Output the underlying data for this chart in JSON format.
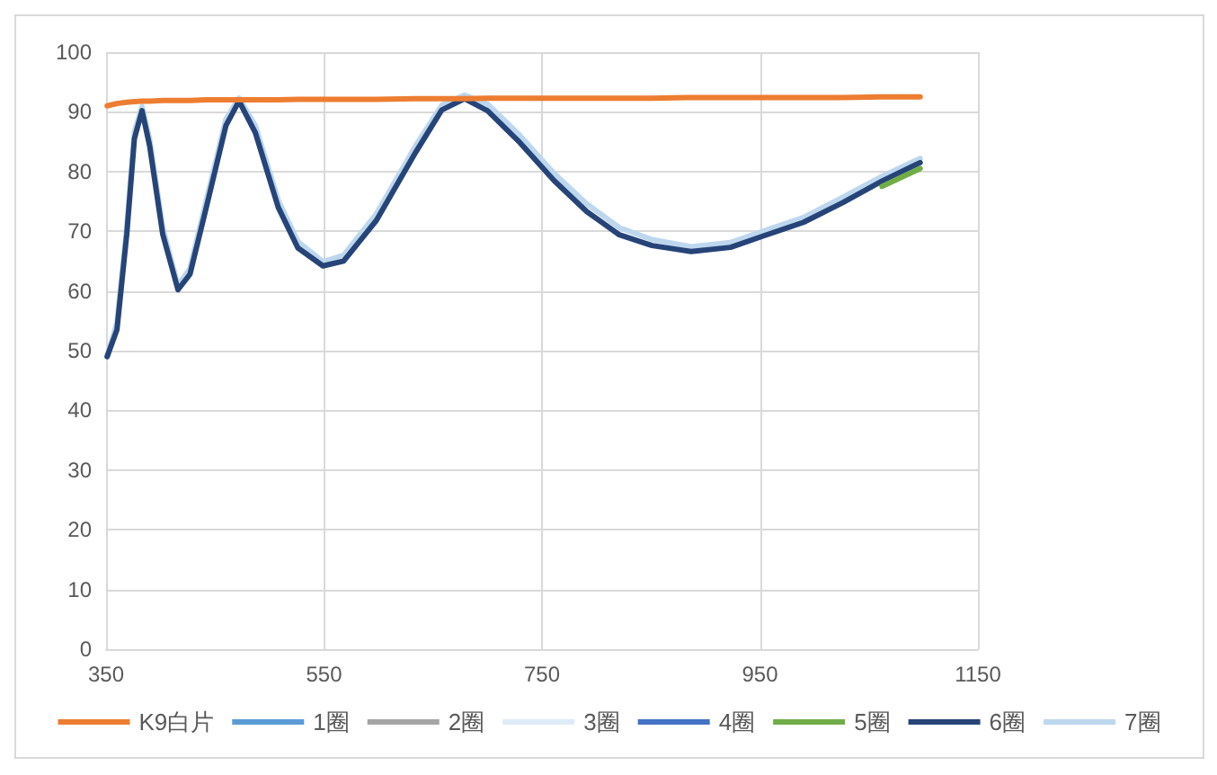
{
  "chart_data": {
    "type": "line",
    "x": [
      351,
      360,
      369,
      376,
      383,
      390,
      402,
      416,
      427,
      442,
      460,
      472,
      487,
      508,
      526,
      549,
      568,
      598,
      634,
      658,
      679,
      700,
      730,
      761,
      791,
      821,
      851,
      887,
      923,
      953,
      990,
      1026,
      1062,
      1097
    ],
    "xlim": [
      350,
      1150
    ],
    "xticks": [
      350,
      550,
      750,
      950,
      1150
    ],
    "ylim": [
      0,
      100
    ],
    "yticks": [
      0,
      10,
      20,
      30,
      40,
      50,
      60,
      70,
      80,
      90,
      100
    ],
    "grid": true,
    "legend": "bottom",
    "marker": "none",
    "series": [
      {
        "name": "K9白片",
        "color": "#ed7d31",
        "values": [
          91,
          91.4,
          91.6,
          91.7,
          91.8,
          91.8,
          91.9,
          91.9,
          91.9,
          92,
          92,
          92,
          92,
          92,
          92.1,
          92.1,
          92.1,
          92.1,
          92.2,
          92.2,
          92.2,
          92.3,
          92.3,
          92.3,
          92.3,
          92.3,
          92.3,
          92.4,
          92.4,
          92.4,
          92.4,
          92.4,
          92.5,
          92.5
        ]
      },
      {
        "name": "1圈",
        "color": "#5b9bd5",
        "values": [
          null,
          null,
          null,
          null,
          null,
          null,
          null,
          null,
          null,
          null,
          null,
          null,
          null,
          null,
          null,
          null,
          null,
          null,
          null,
          null,
          null,
          null,
          null,
          null,
          null,
          null,
          null,
          null,
          null,
          null,
          null,
          null,
          null,
          null
        ]
      },
      {
        "name": "2圈",
        "color": "#a5a5a5",
        "values": [
          null,
          null,
          null,
          null,
          null,
          null,
          null,
          null,
          null,
          null,
          null,
          null,
          null,
          null,
          null,
          null,
          null,
          null,
          null,
          null,
          null,
          null,
          null,
          null,
          null,
          null,
          null,
          null,
          null,
          null,
          null,
          null,
          null,
          null
        ]
      },
      {
        "name": "3圈",
        "color": "#deebf7",
        "values": [
          null,
          null,
          null,
          null,
          null,
          null,
          null,
          null,
          null,
          null,
          null,
          null,
          null,
          null,
          null,
          null,
          null,
          null,
          null,
          null,
          null,
          null,
          null,
          null,
          null,
          null,
          null,
          null,
          null,
          null,
          null,
          null,
          null,
          null
        ]
      },
      {
        "name": "4圈",
        "color": "#4472c4",
        "values": [
          null,
          null,
          null,
          null,
          null,
          null,
          null,
          null,
          null,
          null,
          null,
          null,
          null,
          null,
          null,
          null,
          null,
          null,
          null,
          null,
          null,
          null,
          null,
          null,
          null,
          null,
          null,
          null,
          null,
          null,
          null,
          null,
          null,
          null
        ]
      },
      {
        "name": "5圈",
        "color": "#70ad47",
        "values": [
          null,
          null,
          null,
          null,
          null,
          null,
          null,
          null,
          null,
          null,
          null,
          null,
          null,
          null,
          null,
          null,
          null,
          null,
          null,
          null,
          null,
          null,
          null,
          null,
          null,
          null,
          null,
          null,
          null,
          null,
          null,
          null,
          77.5,
          80.5
        ]
      },
      {
        "name": "6圈",
        "color": "#264478",
        "values": [
          49,
          53.5,
          69.5,
          85.5,
          90.2,
          84.3,
          69.5,
          60.2,
          62.8,
          74,
          87.7,
          91.8,
          86.5,
          74,
          67.2,
          64.2,
          65,
          71.8,
          83.2,
          90.3,
          92.2,
          90.2,
          84.8,
          78.5,
          73.3,
          69.4,
          67.6,
          66.6,
          67.3,
          69.2,
          71.5,
          74.8,
          78.4,
          81.5
        ]
      },
      {
        "name": "7圈",
        "color": "#bdd7ee",
        "values": [
          49,
          54.7,
          70.6,
          86.6,
          90.9,
          85.4,
          70.6,
          60.9,
          63.8,
          75.2,
          88.8,
          92.3,
          87.7,
          75.2,
          68.3,
          64.9,
          66,
          72.9,
          84.3,
          91.1,
          92.8,
          91.3,
          86,
          79.7,
          74.6,
          70.6,
          68.6,
          67.4,
          68.1,
          70,
          72.3,
          75.7,
          79.2,
          82.2
        ]
      }
    ]
  }
}
